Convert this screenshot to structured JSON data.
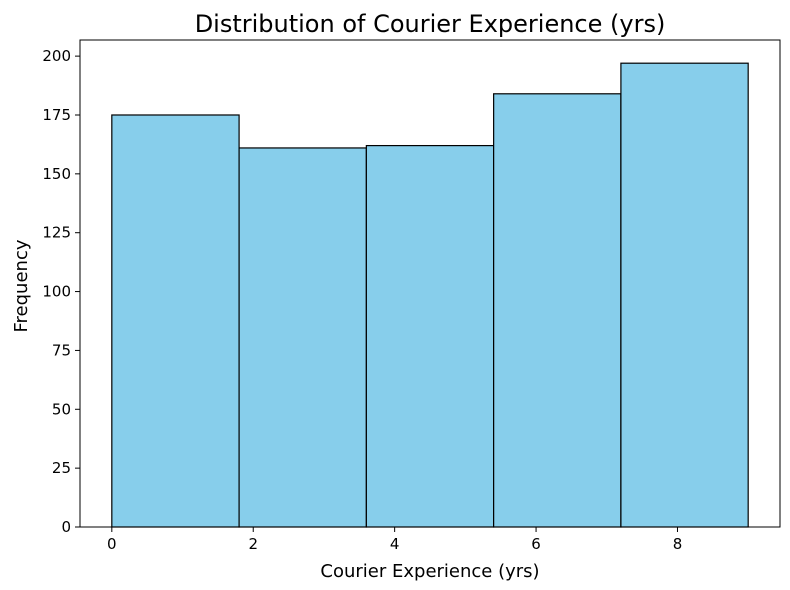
{
  "chart_data": {
    "type": "bar",
    "subtype": "histogram",
    "title": "Distribution of Courier Experience (yrs)",
    "xlabel": "Courier Experience (yrs)",
    "ylabel": "Frequency",
    "bins": [
      {
        "x0": 0.0,
        "x1": 1.8,
        "value": 175
      },
      {
        "x0": 1.8,
        "x1": 3.6,
        "value": 161
      },
      {
        "x0": 3.6,
        "x1": 5.4,
        "value": 162
      },
      {
        "x0": 5.4,
        "x1": 7.2,
        "value": 184
      },
      {
        "x0": 7.2,
        "x1": 9.0,
        "value": 197
      }
    ],
    "xlim": [
      -0.45,
      9.45
    ],
    "ylim": [
      0,
      206.85
    ],
    "xticks": [
      0,
      2,
      4,
      6,
      8
    ],
    "yticks": [
      0,
      25,
      50,
      75,
      100,
      125,
      150,
      175,
      200
    ],
    "grid": false,
    "colors": {
      "bar_fill": "#87CEEB",
      "bar_edge": "#000000",
      "axis": "#000000"
    }
  }
}
